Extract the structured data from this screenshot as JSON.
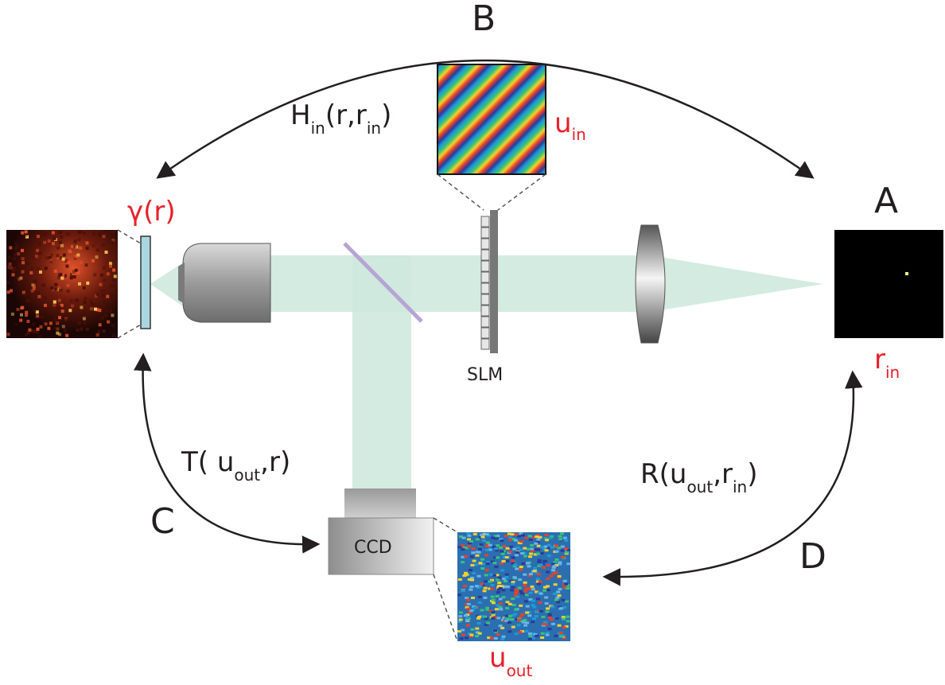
{
  "labels": {
    "A": "A",
    "B": "B",
    "C": "C",
    "D": "D",
    "H_main": "H",
    "H_sub": "in",
    "H_args_open": "(r,r",
    "H_args_sub": "in",
    "H_args_close": ")",
    "T_main": "T( u",
    "T_sub": "out",
    "T_close": ",r)",
    "R_main": "R(u",
    "R_sub1": "out",
    "R_mid": ",r",
    "R_sub2": "in",
    "R_close": ")",
    "u_in_main": "u",
    "u_in_sub": "in",
    "u_out_main": "u",
    "u_out_sub": "out",
    "r_in_main": "r",
    "r_in_sub": "in",
    "gamma": "γ(r)",
    "slm": "SLM",
    "ccd": "CCD"
  },
  "colors": {
    "beam": "#cfe9df",
    "accent_red": "#e8202a",
    "arrow": "#231f20",
    "sample": "#a9d6df",
    "beamsplitter": "#b8a3d6"
  }
}
